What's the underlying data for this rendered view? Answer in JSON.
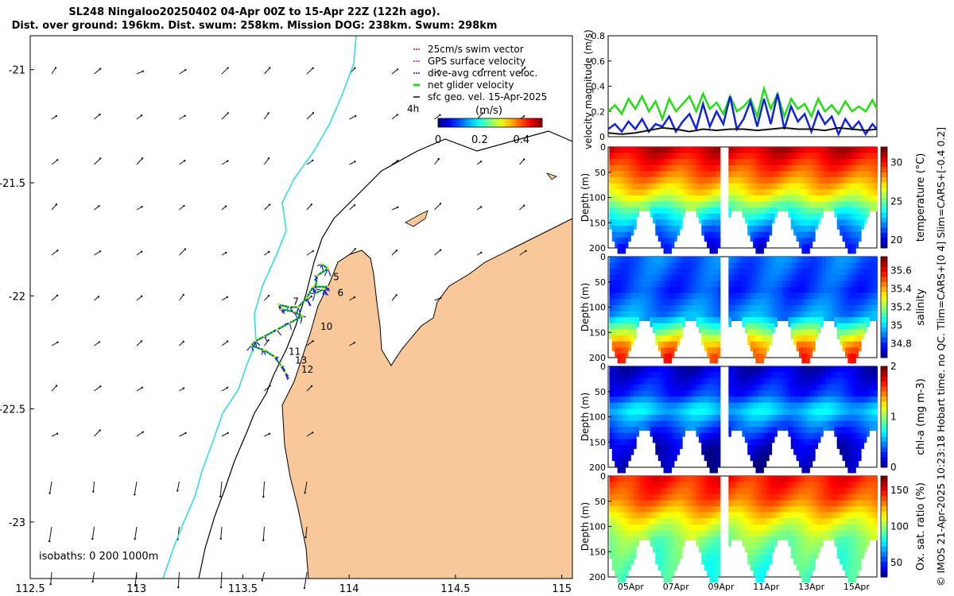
{
  "header": {
    "title_line1": "SL248 Ningaloo20250402 04-Apr 00Z to 15-Apr 22Z (122h ago).",
    "title_line2": "Dist. over ground: 196km. Dist. swum: 258km. Mission DOG: 238km. Swum: 298km"
  },
  "side_note": "© IMOS 21-Apr-2025 10:23:18 Hobart time. no QC. Tlim=CARS+[0 4] Slim=CARS+[-0.4 0.2]",
  "colors": {
    "land": "#f8c89a",
    "coast": "#000000",
    "isobath_200": "#000000",
    "isobath_1000": "#34dddd",
    "net_velocity": "#22dd11",
    "current_velocity": "#1122dd",
    "geo_velocity": "#111111"
  },
  "chart_data": [
    {
      "type": "map",
      "name": "glider track map",
      "xlim": [
        112.5,
        115.05
      ],
      "ylim": [
        -23.25,
        -20.85
      ],
      "x_ticks": [
        "112.5",
        "113",
        "113.5",
        "114",
        "114.5",
        "115"
      ],
      "y_ticks": [
        "-21",
        "-21.5",
        "-22",
        "-22.5",
        "-23"
      ],
      "x_tick_values": [
        112.5,
        113,
        113.5,
        114,
        114.5,
        115
      ],
      "y_tick_values": [
        -21,
        -21.5,
        -22,
        -22.5,
        -23
      ],
      "legend": [
        {
          "label": "25cm/s swim vector",
          "color": "#dd1111"
        },
        {
          "label": "GPS surface velocity",
          "color": "#cc22cc"
        },
        {
          "label": "dive-avg current veloc.",
          "color": "#1122dd"
        },
        {
          "label": "net glider velocity",
          "color": "#22dd11"
        },
        {
          "label": "sfc geo. vel. 15-Apr-2025",
          "color": "#111111"
        }
      ],
      "legend_time": "4h",
      "colorbar": {
        "label": "(m/s)",
        "ticks": [
          "0",
          "0.2",
          "0.4"
        ],
        "tick_values": [
          0,
          0.2,
          0.4
        ],
        "range": [
          0,
          0.5
        ]
      },
      "isobath_note": "isobaths: 0   200  1000m",
      "day_labels": [
        {
          "label": "5",
          "lon": 113.91,
          "lat": -21.93
        },
        {
          "label": "6",
          "lon": 113.93,
          "lat": -22.0
        },
        {
          "label": "7",
          "lon": 113.72,
          "lat": -22.04
        },
        {
          "label": "10",
          "lon": 113.85,
          "lat": -22.15
        },
        {
          "label": "11",
          "lon": 113.7,
          "lat": -22.26
        },
        {
          "label": "13",
          "lon": 113.73,
          "lat": -22.3
        },
        {
          "label": "12",
          "lon": 113.76,
          "lat": -22.34
        }
      ],
      "track": [
        [
          113.87,
          -21.86
        ],
        [
          113.9,
          -21.88
        ],
        [
          113.85,
          -21.91
        ],
        [
          113.84,
          -21.97
        ],
        [
          113.84,
          -21.99
        ],
        [
          113.88,
          -21.97
        ],
        [
          113.9,
          -21.96
        ],
        [
          113.83,
          -21.96
        ],
        [
          113.8,
          -22.01
        ],
        [
          113.76,
          -22.05
        ],
        [
          113.72,
          -22.05
        ],
        [
          113.67,
          -22.04
        ],
        [
          113.68,
          -22.06
        ],
        [
          113.74,
          -22.07
        ],
        [
          113.78,
          -22.09
        ],
        [
          113.72,
          -22.12
        ],
        [
          113.66,
          -22.15
        ],
        [
          113.6,
          -22.18
        ],
        [
          113.56,
          -22.2
        ],
        [
          113.54,
          -22.22
        ],
        [
          113.6,
          -22.24
        ],
        [
          113.65,
          -22.27
        ],
        [
          113.68,
          -22.31
        ],
        [
          113.7,
          -22.34
        ]
      ]
    },
    {
      "type": "line",
      "name": "velocity magnitude",
      "ylabel": "velocity magnitude (m/s)",
      "ylim": [
        0,
        0.8
      ],
      "y_ticks": [
        "0",
        "0.2",
        "0.4",
        "0.6",
        "0.8"
      ],
      "y_tick_values": [
        0,
        0.2,
        0.4,
        0.6,
        0.8
      ],
      "x_range_days": [
        4.0,
        15.9
      ],
      "x_ticks": [
        "05Apr",
        "07Apr",
        "09Apr",
        "11Apr",
        "13Apr",
        "15Apr"
      ],
      "x_tick_days": [
        5,
        7,
        9,
        11,
        13,
        15
      ],
      "series": [
        {
          "name": "net glider velocity",
          "color": "#22dd11",
          "x": [
            4.0,
            4.3,
            4.6,
            4.9,
            5.2,
            5.5,
            5.8,
            6.1,
            6.4,
            6.7,
            7.0,
            7.3,
            7.6,
            7.9,
            8.2,
            8.5,
            8.8,
            9.1,
            9.4,
            9.7,
            10.0,
            10.3,
            10.6,
            10.9,
            11.2,
            11.5,
            11.8,
            12.1,
            12.4,
            12.7,
            13.0,
            13.3,
            13.6,
            13.9,
            14.2,
            14.5,
            14.8,
            15.1,
            15.4,
            15.7,
            15.9
          ],
          "values": [
            0.2,
            0.25,
            0.18,
            0.3,
            0.22,
            0.32,
            0.2,
            0.28,
            0.14,
            0.3,
            0.2,
            0.26,
            0.32,
            0.2,
            0.34,
            0.22,
            0.27,
            0.18,
            0.32,
            0.2,
            0.24,
            0.3,
            0.16,
            0.38,
            0.22,
            0.34,
            0.16,
            0.3,
            0.22,
            0.26,
            0.16,
            0.3,
            0.2,
            0.25,
            0.18,
            0.28,
            0.2,
            0.24,
            0.2,
            0.29,
            0.22
          ]
        },
        {
          "name": "dive-avg current velocity",
          "color": "#1122dd",
          "x": [
            4.0,
            4.3,
            4.6,
            4.9,
            5.2,
            5.5,
            5.8,
            6.1,
            6.4,
            6.7,
            7.0,
            7.3,
            7.6,
            7.9,
            8.2,
            8.5,
            8.8,
            9.1,
            9.4,
            9.7,
            10.0,
            10.3,
            10.6,
            10.9,
            11.2,
            11.5,
            11.8,
            12.1,
            12.4,
            12.7,
            13.0,
            13.3,
            13.6,
            13.9,
            14.2,
            14.5,
            14.8,
            15.1,
            15.4,
            15.7,
            15.9
          ],
          "values": [
            0.06,
            0.1,
            0.04,
            0.12,
            0.06,
            0.14,
            0.04,
            0.1,
            0.08,
            0.16,
            0.04,
            0.12,
            0.18,
            0.06,
            0.26,
            0.08,
            0.2,
            0.1,
            0.32,
            0.06,
            0.14,
            0.28,
            0.08,
            0.3,
            0.1,
            0.34,
            0.06,
            0.24,
            0.12,
            0.18,
            0.04,
            0.2,
            0.1,
            0.16,
            0.02,
            0.14,
            0.06,
            0.12,
            0.02,
            0.1,
            0.06
          ]
        },
        {
          "name": "sfc geo. velocity",
          "color": "#111111",
          "x": [
            4.0,
            4.6,
            5.2,
            5.8,
            6.4,
            7.0,
            7.6,
            8.2,
            8.8,
            9.4,
            10.0,
            10.6,
            11.2,
            11.8,
            12.4,
            13.0,
            13.6,
            14.2,
            14.8,
            15.4,
            15.9
          ],
          "values": [
            0.03,
            0.02,
            0.03,
            0.05,
            0.07,
            0.06,
            0.04,
            0.06,
            0.05,
            0.06,
            0.06,
            0.05,
            0.06,
            0.07,
            0.06,
            0.06,
            0.05,
            0.07,
            0.06,
            0.05,
            0.06
          ]
        }
      ]
    },
    {
      "type": "heatmap",
      "name": "temperature",
      "colorbar_label": "temperature (°C)",
      "ylabel": "Depth (m)",
      "ylim": [
        200,
        0
      ],
      "y_ticks": [
        "0",
        "50",
        "100",
        "150",
        "200"
      ],
      "y_tick_values": [
        0,
        50,
        100,
        150,
        200
      ],
      "clim": [
        19,
        32
      ],
      "c_ticks": [
        "20",
        "25",
        "30"
      ],
      "c_tick_values": [
        20,
        25,
        30
      ],
      "profile": [
        [
          0,
          31
        ],
        [
          50,
          29
        ],
        [
          90,
          27
        ],
        [
          120,
          24.5
        ],
        [
          160,
          22
        ],
        [
          200,
          20
        ]
      ],
      "x_ticks": [
        "05Apr",
        "07Apr",
        "09Apr",
        "11Apr",
        "13Apr",
        "15Apr"
      ]
    },
    {
      "type": "heatmap",
      "name": "salinity",
      "colorbar_label": "salinity",
      "ylabel": "Depth (m)",
      "ylim": [
        200,
        0
      ],
      "y_ticks": [
        "0",
        "50",
        "100",
        "150",
        "200"
      ],
      "y_tick_values": [
        0,
        50,
        100,
        150,
        200
      ],
      "clim": [
        34.65,
        35.75
      ],
      "c_ticks": [
        "34.8",
        "35",
        "35.2",
        "35.4",
        "35.6"
      ],
      "c_tick_values": [
        34.8,
        35,
        35.2,
        35.4,
        35.6
      ],
      "profile": [
        [
          0,
          34.9
        ],
        [
          60,
          34.85
        ],
        [
          110,
          34.95
        ],
        [
          140,
          35.2
        ],
        [
          170,
          35.45
        ],
        [
          200,
          35.6
        ]
      ],
      "x_ticks": [
        "05Apr",
        "07Apr",
        "09Apr",
        "11Apr",
        "13Apr",
        "15Apr"
      ]
    },
    {
      "type": "heatmap",
      "name": "chlorophyll-a",
      "colorbar_label": "chl-a (mg m-3)",
      "ylabel": "Depth (m)",
      "ylim": [
        200,
        0
      ],
      "y_ticks": [
        "0",
        "50",
        "100",
        "150",
        "200"
      ],
      "y_tick_values": [
        0,
        50,
        100,
        150,
        200
      ],
      "clim": [
        0,
        2
      ],
      "c_ticks": [
        "0",
        "1",
        "2"
      ],
      "c_tick_values": [
        0,
        1,
        2
      ],
      "profile": [
        [
          0,
          0.15
        ],
        [
          50,
          0.35
        ],
        [
          80,
          0.7
        ],
        [
          110,
          0.45
        ],
        [
          150,
          0.15
        ],
        [
          200,
          0.05
        ]
      ],
      "x_ticks": [
        "05Apr",
        "07Apr",
        "09Apr",
        "11Apr",
        "13Apr",
        "15Apr"
      ]
    },
    {
      "type": "heatmap",
      "name": "oxygen saturation",
      "colorbar_label": "Ox. sat. ratio (%)",
      "ylabel": "Depth (m)",
      "ylim": [
        200,
        0
      ],
      "y_ticks": [
        "0",
        "50",
        "100",
        "150",
        "200"
      ],
      "y_tick_values": [
        0,
        50,
        100,
        150,
        200
      ],
      "clim": [
        30,
        170
      ],
      "c_ticks": [
        "50",
        "100",
        "150"
      ],
      "c_tick_values": [
        50,
        100,
        150
      ],
      "profile": [
        [
          0,
          150
        ],
        [
          40,
          140
        ],
        [
          80,
          118
        ],
        [
          120,
          100
        ],
        [
          160,
          92
        ],
        [
          200,
          88
        ]
      ],
      "x_ticks": [
        "05Apr",
        "07Apr",
        "09Apr",
        "11Apr",
        "13Apr",
        "15Apr"
      ]
    }
  ]
}
